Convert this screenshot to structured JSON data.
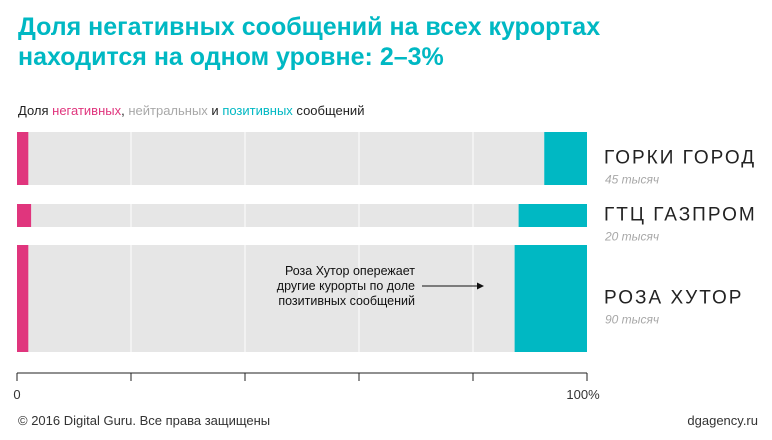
{
  "title": {
    "line1": "Доля негативных сообщений на всех курортах",
    "line2": "находится на одном уровне: 2–3%"
  },
  "legend": {
    "prefix": "Доля ",
    "negative": "негативных",
    "comma": ", ",
    "neutral": "нейтральных",
    "and": " и ",
    "positive": "позитивных",
    "suffix": " сообщений"
  },
  "colors": {
    "negative": "#e0357d",
    "neutral": "#e6e6e6",
    "positive": "#00b8c3",
    "title": "#00b8c3",
    "sublabel": "#a8a8a8"
  },
  "chart_data": {
    "type": "bar",
    "orientation": "horizontal-stacked-100",
    "title": "Доля негативных сообщений на всех курортах находится на одном уровне: 2–3%",
    "xlabel": "",
    "ylabel": "",
    "xlim": [
      0,
      100
    ],
    "x_ticks": [
      "0",
      "",
      "",
      "",
      "",
      "100%"
    ],
    "x_tick_values": [
      0,
      20,
      40,
      60,
      80,
      100
    ],
    "categories": [
      "ГОРКИ ГОРОД",
      "ГТЦ ГАЗПРОМ",
      "РОЗА ХУТОР"
    ],
    "category_sublabels": [
      "45 тысяч",
      "20 тысяч",
      "90 тысяч"
    ],
    "message_counts": [
      45000,
      20000,
      90000
    ],
    "series": [
      {
        "name": "негативных",
        "values": [
          2,
          2.5,
          2
        ]
      },
      {
        "name": "нейтральных",
        "values": [
          90.5,
          85.5,
          85.3
        ]
      },
      {
        "name": "позитивных",
        "values": [
          7.5,
          12,
          12.7
        ]
      }
    ],
    "annotation": {
      "lines": [
        "Роза Хутор опережает",
        "другие курорты по доле",
        "позитивных сообщений"
      ],
      "target": "РОЗА ХУТОР"
    }
  },
  "footer": {
    "copyright": "© 2016 Digital Guru. Все права защищены",
    "site": "dgagency.ru"
  }
}
